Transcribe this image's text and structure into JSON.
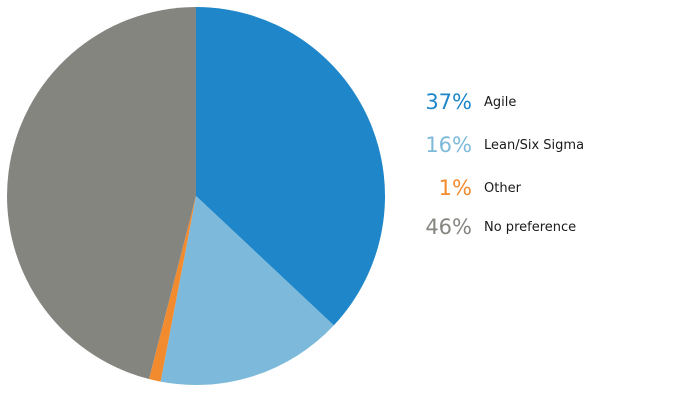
{
  "chart_data": {
    "type": "pie",
    "slices": [
      {
        "label": "Agile",
        "value": 37,
        "value_label": "37%",
        "color": "#1f87c9"
      },
      {
        "label": "Lean/Six Sigma",
        "value": 16,
        "value_label": "16%",
        "color": "#7cb9da"
      },
      {
        "label": "Other",
        "value": 1,
        "value_label": "1%",
        "color": "#f28a2e"
      },
      {
        "label": "No preference",
        "value": 46,
        "value_label": "46%",
        "color": "#858580"
      }
    ],
    "start_angle_deg": 0,
    "direction": "clockwise",
    "legend_position": "right"
  }
}
